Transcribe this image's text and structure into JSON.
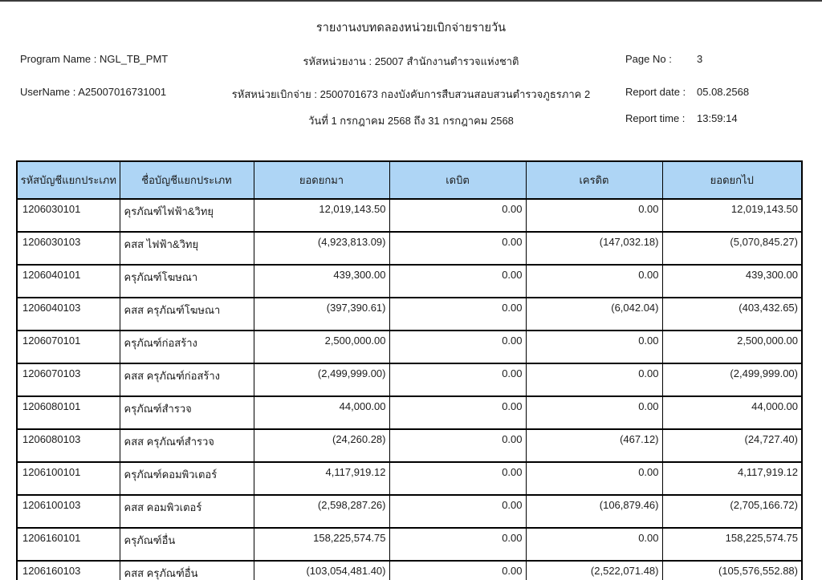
{
  "header": {
    "title": "รายงานงบทดลองหน่วยเบิกจ่ายรายวัน",
    "program_name": "Program Name : NGL_TB_PMT",
    "username": "UserName : A25007016731001",
    "agency": "รหัสหน่วยงาน : 25007 สำนักงานตำรวจแห่งชาติ",
    "disbursing_unit": "รหัสหน่วยเบิกจ่าย : 2500701673 กองบังคับการสืบสวนสอบสวนตำรวจภูธรภาค 2",
    "date_range": "วันที่ 1 กรกฎาคม 2568 ถึง 31 กรกฎาคม 2568",
    "page_no_label": "Page No :",
    "page_no": "3",
    "report_date_label": "Report date :",
    "report_date": "05.08.2568",
    "report_time_label": "Report time :",
    "report_time": "13:59:14"
  },
  "table": {
    "header_bg": "#aed5f5",
    "columns": [
      "รหัสบัญชีแยกประเภท",
      "ชื่อบัญชีแยกประเภท",
      "ยอดยกมา",
      "เดบิต",
      "เครดิต",
      "ยอดยกไป"
    ],
    "rows": [
      [
        "1206030101",
        "คุรภัณฑ์ไฟฟ้า&วิทยุ",
        "12,019,143.50",
        "0.00",
        "0.00",
        "12,019,143.50"
      ],
      [
        "1206030103",
        "คสส ไฟฟ้า&วิทยุ",
        "(4,923,813.09)",
        "0.00",
        "(147,032.18)",
        "(5,070,845.27)"
      ],
      [
        "1206040101",
        "ครุภัณฑ์โฆษณา",
        "439,300.00",
        "0.00",
        "0.00",
        "439,300.00"
      ],
      [
        "1206040103",
        "คสส ครุภัณฑ์โฆษณา",
        "(397,390.61)",
        "0.00",
        "(6,042.04)",
        "(403,432.65)"
      ],
      [
        "1206070101",
        "ครุภัณฑ์ก่อสร้าง",
        "2,500,000.00",
        "0.00",
        "0.00",
        "2,500,000.00"
      ],
      [
        "1206070103",
        "คสส ครุภัณฑ์ก่อสร้าง",
        "(2,499,999.00)",
        "0.00",
        "0.00",
        "(2,499,999.00)"
      ],
      [
        "1206080101",
        "ครุภัณฑ์สำรวจ",
        "44,000.00",
        "0.00",
        "0.00",
        "44,000.00"
      ],
      [
        "1206080103",
        "คสส ครุภัณฑ์สำรวจ",
        "(24,260.28)",
        "0.00",
        "(467.12)",
        "(24,727.40)"
      ],
      [
        "1206100101",
        "ครุภัณฑ์คอมพิวเตอร์",
        "4,117,919.12",
        "0.00",
        "0.00",
        "4,117,919.12"
      ],
      [
        "1206100103",
        "คสส คอมพิวเตอร์",
        "(2,598,287.26)",
        "0.00",
        "(106,879.46)",
        "(2,705,166.72)"
      ],
      [
        "1206160101",
        "ครุภัณฑ์อื่น",
        "158,225,574.75",
        "0.00",
        "0.00",
        "158,225,574.75"
      ],
      [
        "1206160103",
        "คสส ครุภัณฑ์อื่น",
        "(103,054,481.40)",
        "0.00",
        "(2,522,071.48)",
        "(105,576,552.88)"
      ]
    ]
  }
}
